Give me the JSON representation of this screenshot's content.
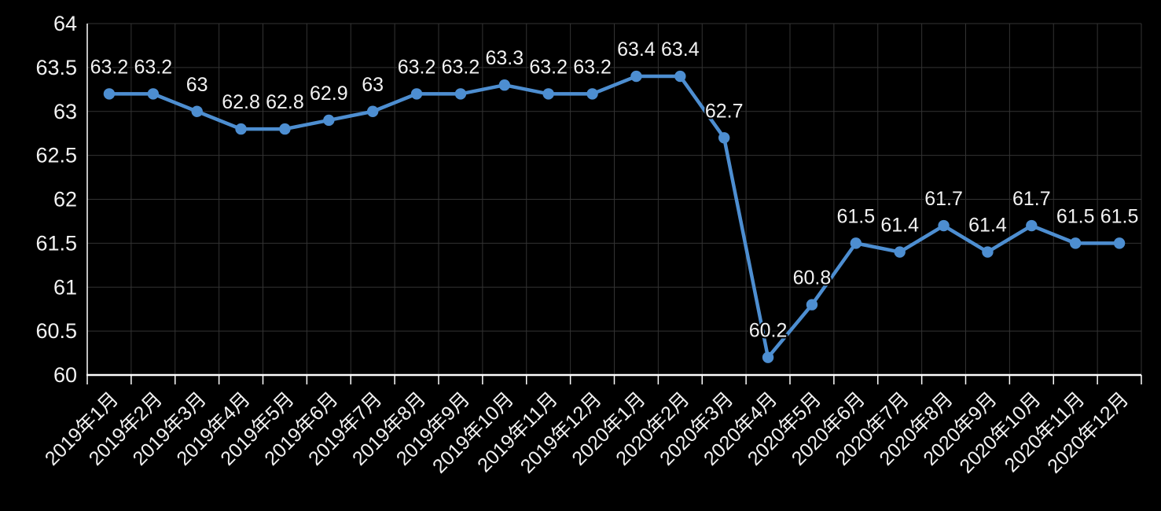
{
  "chart_data": {
    "type": "line",
    "title": "",
    "xlabel": "",
    "ylabel": "",
    "categories": [
      "2019年1月",
      "2019年2月",
      "2019年3月",
      "2019年4月",
      "2019年5月",
      "2019年6月",
      "2019年7月",
      "2019年8月",
      "2019年9月",
      "2019年10月",
      "2019年11月",
      "2019年12月",
      "2020年1月",
      "2020年2月",
      "2020年3月",
      "2020年4月",
      "2020年5月",
      "2020年6月",
      "2020年7月",
      "2020年8月",
      "2020年9月",
      "2020年10月",
      "2020年11月",
      "2020年12月"
    ],
    "series": [
      {
        "name": "",
        "values": [
          63.2,
          63.2,
          63,
          62.8,
          62.8,
          62.9,
          63,
          63.2,
          63.2,
          63.3,
          63.2,
          63.2,
          63.4,
          63.4,
          62.7,
          60.2,
          60.8,
          61.5,
          61.4,
          61.7,
          61.4,
          61.7,
          61.5,
          61.5
        ],
        "point_labels": [
          "63.2",
          "63.2",
          "63",
          "62.8",
          "62.8",
          "62.9",
          "63",
          "63.2",
          "63.2",
          "63.3",
          "63.2",
          "63.2",
          "63.4",
          "63.4",
          "62.7",
          "60.2",
          "60.8",
          "61.5",
          "61.4",
          "61.7",
          "61.4",
          "61.7",
          "61.5",
          "61.5"
        ]
      }
    ],
    "ylim": [
      60,
      64
    ],
    "y_ticks": [
      {
        "value": 64,
        "label": "64"
      },
      {
        "value": 63.5,
        "label": "63.5"
      },
      {
        "value": 63,
        "label": "63"
      },
      {
        "value": 62.5,
        "label": "62.5"
      },
      {
        "value": 62,
        "label": "62"
      },
      {
        "value": 61.5,
        "label": "61.5"
      },
      {
        "value": 61,
        "label": "61"
      },
      {
        "value": 60.5,
        "label": "60.5"
      },
      {
        "value": 60,
        "label": "60"
      }
    ],
    "grid": true,
    "legend": "none",
    "x_tick_rotation_deg": 45,
    "data_labels": "above",
    "colors": {
      "background": "#000000",
      "series": "#4D8ED1",
      "gridline": "#333333",
      "axis": "#FFFFFF",
      "text": "#F2F2F2"
    }
  }
}
